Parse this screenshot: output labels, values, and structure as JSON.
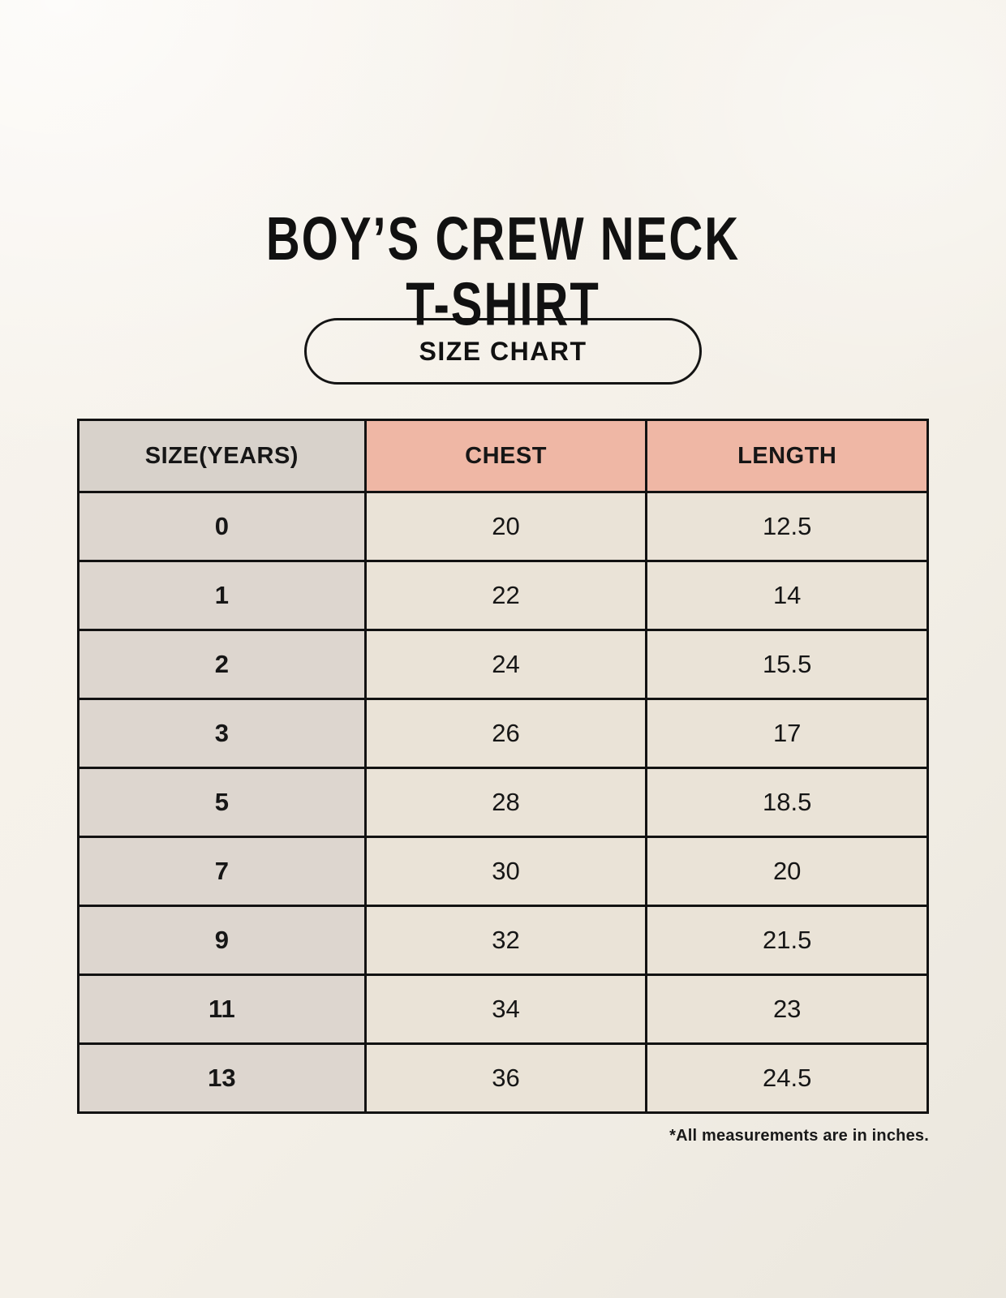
{
  "page": {
    "title_line1": "BOY’S CREW NECK",
    "title_line2": "T-SHIRT",
    "badge_label": "SIZE CHART",
    "footnote": "*All measurements are in inches."
  },
  "colors": {
    "background": "#f4f0e8",
    "header_label_bg": "#d8d2cb",
    "header_accent_bg": "#efb7a5",
    "row_label_bg": "#ddd6cf",
    "row_value_bg": "#eae3d7",
    "border": "#121212",
    "text": "#161616"
  },
  "chart_data": {
    "type": "table",
    "title": "BOY’S CREW NECK T-SHIRT",
    "subtitle": "SIZE CHART",
    "columns": [
      "SIZE(YEARS)",
      "CHEST",
      "LENGTH"
    ],
    "rows": [
      [
        "0",
        "20",
        "12.5"
      ],
      [
        "1",
        "22",
        "14"
      ],
      [
        "2",
        "24",
        "15.5"
      ],
      [
        "3",
        "26",
        "17"
      ],
      [
        "5",
        "28",
        "18.5"
      ],
      [
        "7",
        "30",
        "20"
      ],
      [
        "9",
        "32",
        "21.5"
      ],
      [
        "11",
        "34",
        "23"
      ],
      [
        "13",
        "36",
        "24.5"
      ]
    ],
    "units": "inches",
    "note": "*All measurements are in inches."
  }
}
